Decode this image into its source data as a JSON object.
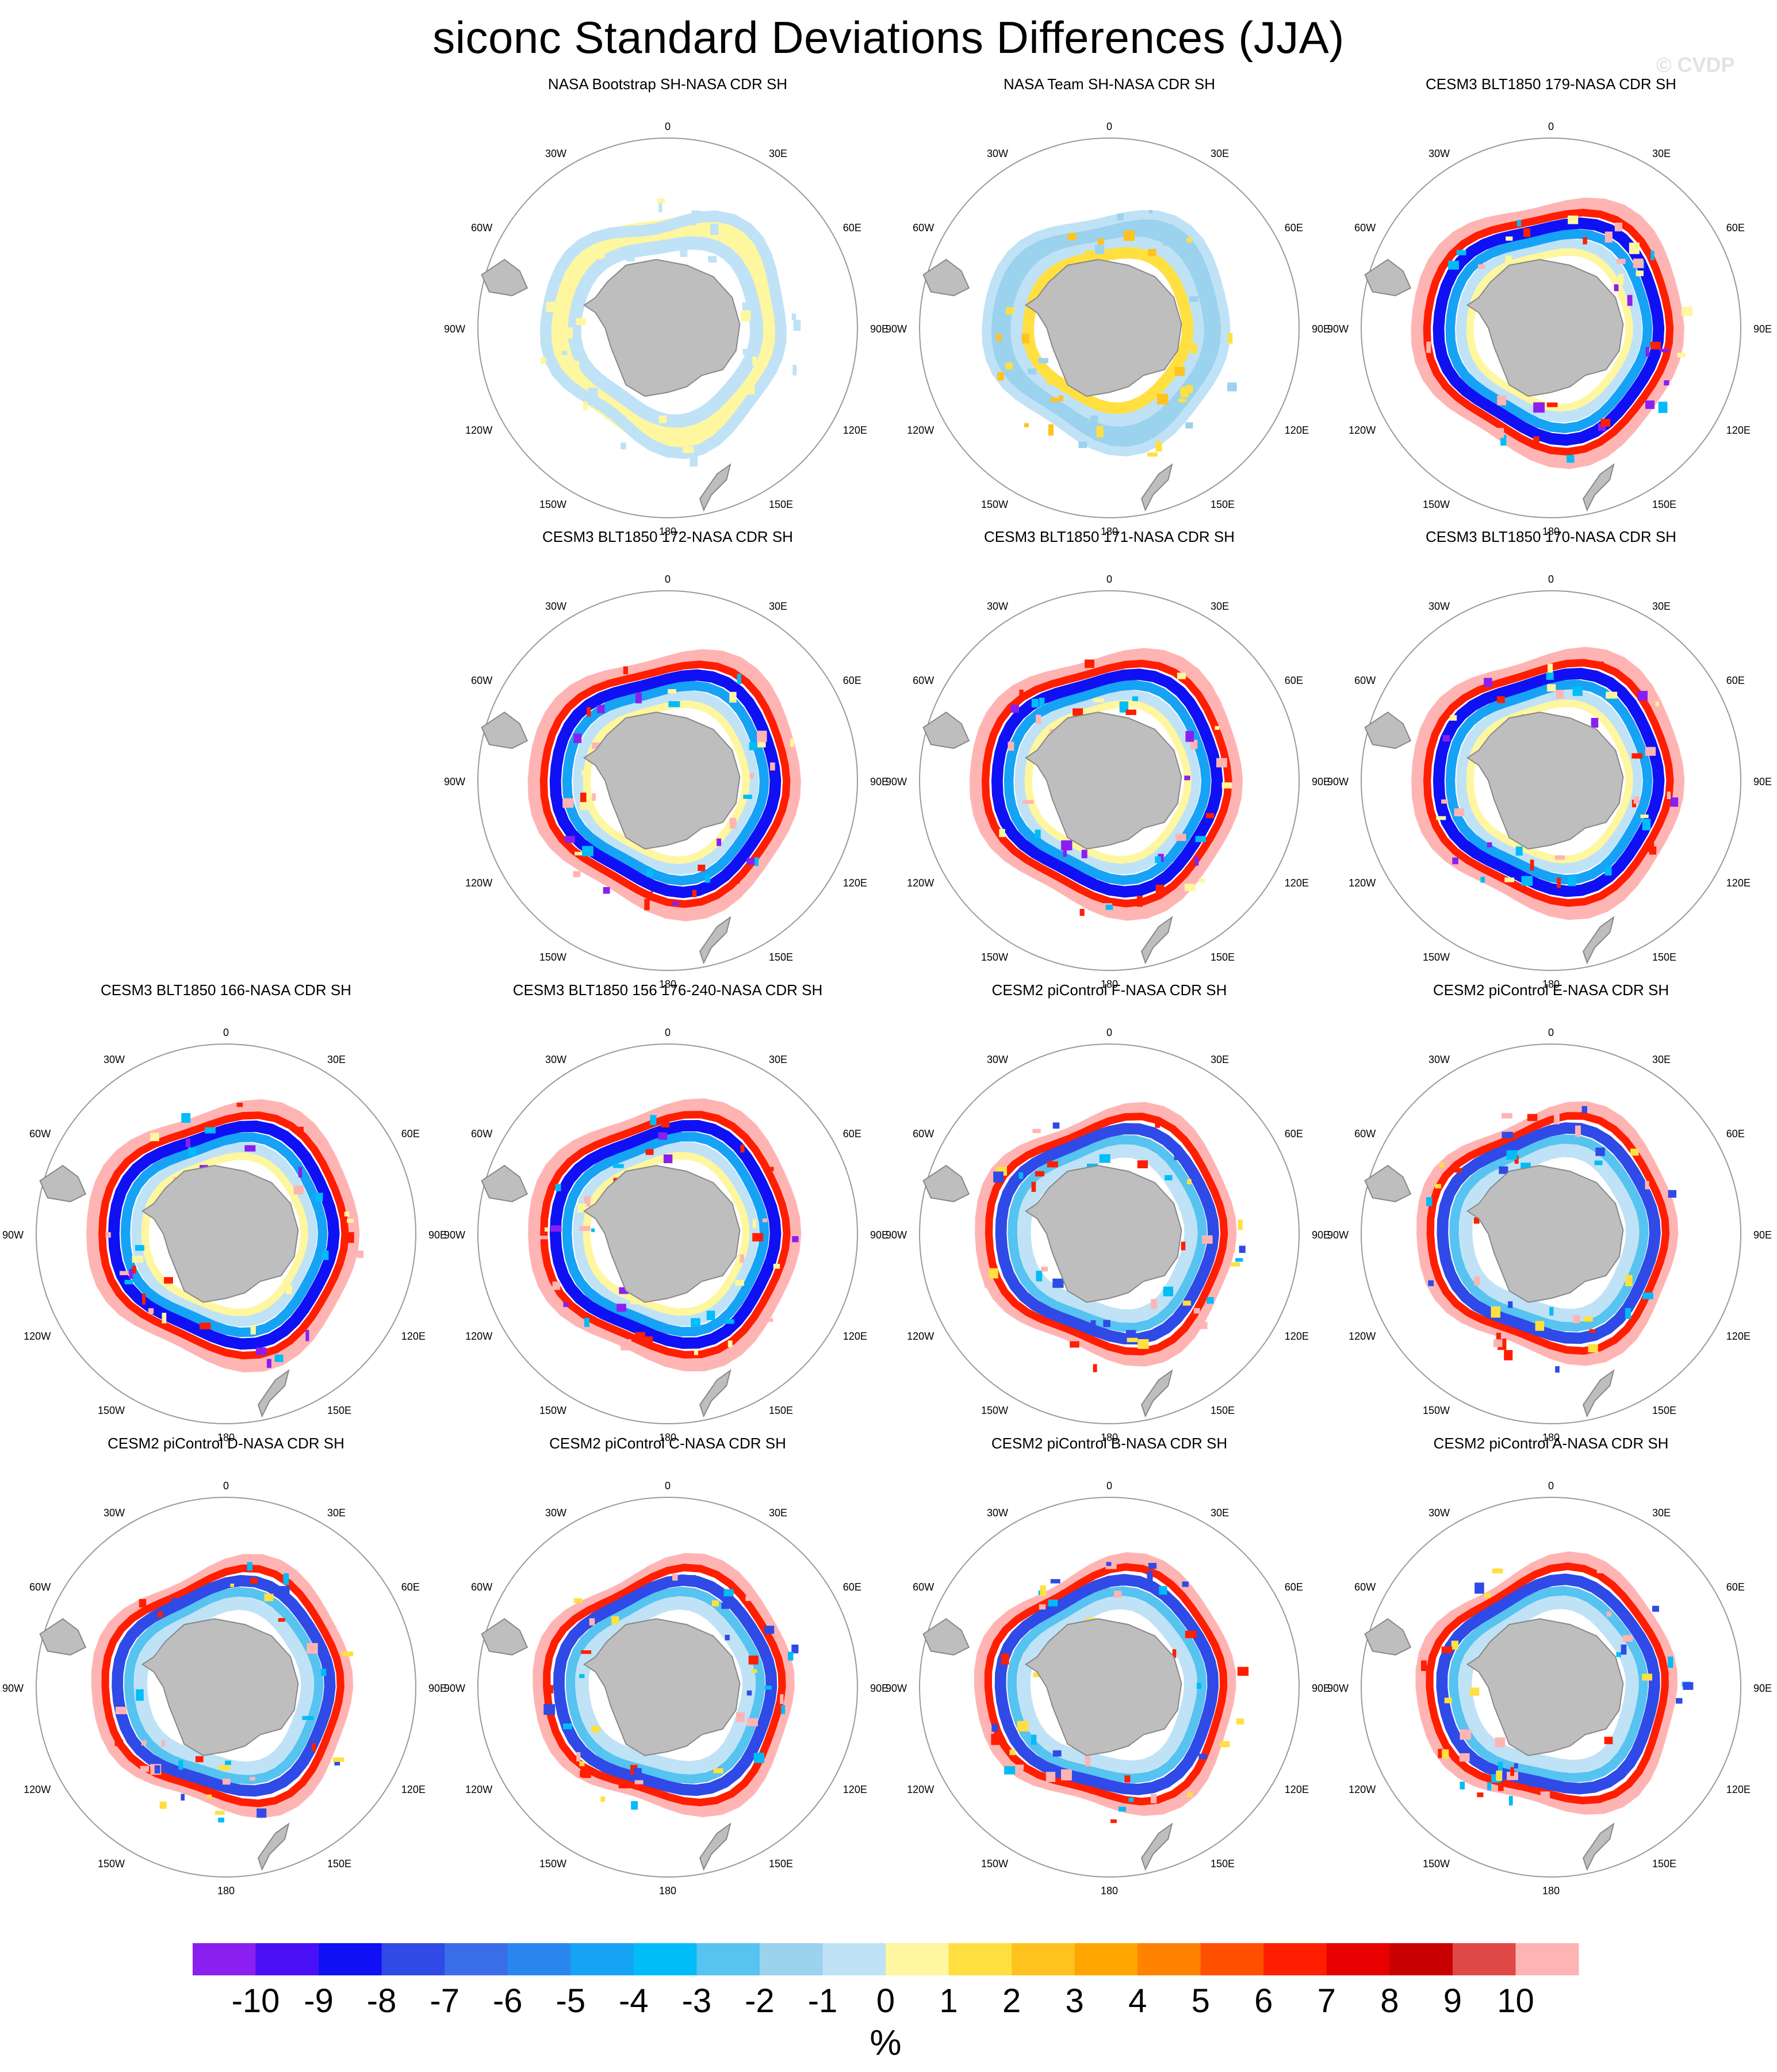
{
  "figure": {
    "title": "siconc Standard Deviations Differences (JJA)",
    "watermark": "© CVDP",
    "units": "%"
  },
  "longitude_labels": [
    "0",
    "30E",
    "60E",
    "90E",
    "120E",
    "150E",
    "180",
    "150W",
    "120W",
    "90W",
    "60W",
    "30W"
  ],
  "panels": [
    {
      "title": "NASA Bootstrap SH-NASA CDR SH",
      "style": "bootstrap"
    },
    {
      "title": "NASA Team SH-NASA CDR SH",
      "style": "team"
    },
    {
      "title": "CESM3 BLT1850 179-NASA CDR SH",
      "style": "cesm3"
    },
    {
      "title": "CESM3 BLT1850 172-NASA CDR SH",
      "style": "cesm3"
    },
    {
      "title": "CESM3 BLT1850 171-NASA CDR SH",
      "style": "cesm3"
    },
    {
      "title": "CESM3 BLT1850 170-NASA CDR SH",
      "style": "cesm3"
    },
    {
      "title": "CESM3 BLT1850 166-NASA CDR SH",
      "style": "cesm3"
    },
    {
      "title": "CESM3 BLT1850 156 176-240-NASA CDR SH",
      "style": "cesm3"
    },
    {
      "title": "CESM2 piControl F-NASA CDR SH",
      "style": "cesm2"
    },
    {
      "title": "CESM2 piControl E-NASA CDR SH",
      "style": "cesm2"
    },
    {
      "title": "CESM2 piControl D-NASA CDR SH",
      "style": "cesm2"
    },
    {
      "title": "CESM2 piControl C-NASA CDR SH",
      "style": "cesm2"
    },
    {
      "title": "CESM2 piControl B-NASA CDR SH",
      "style": "cesm2"
    },
    {
      "title": "CESM2 piControl A-NASA CDR SH",
      "style": "cesm2"
    }
  ],
  "colorbar": {
    "tick_labels": [
      "-10",
      "-9",
      "-8",
      "-7",
      "-6",
      "-5",
      "-4",
      "-3",
      "-2",
      "-1",
      "0",
      "1",
      "2",
      "3",
      "4",
      "5",
      "6",
      "7",
      "8",
      "9",
      "10"
    ],
    "colors": [
      "#8a1ff0",
      "#4a10f5",
      "#1010f5",
      "#2f4ae6",
      "#3a6ee8",
      "#2a86ef",
      "#16a2f5",
      "#00bcf8",
      "#56c3f0",
      "#9bd2ee",
      "#bfe2f6",
      "#fff6a0",
      "#ffe040",
      "#ffc21e",
      "#ffa500",
      "#ff8200",
      "#ff5000",
      "#ff1e00",
      "#e60000",
      "#c80000",
      "#e04848",
      "#ffb4b4"
    ]
  },
  "map_colors": {
    "land": "#bebebe",
    "land_outline": "#888888",
    "circle": "#9a9a9a"
  }
}
